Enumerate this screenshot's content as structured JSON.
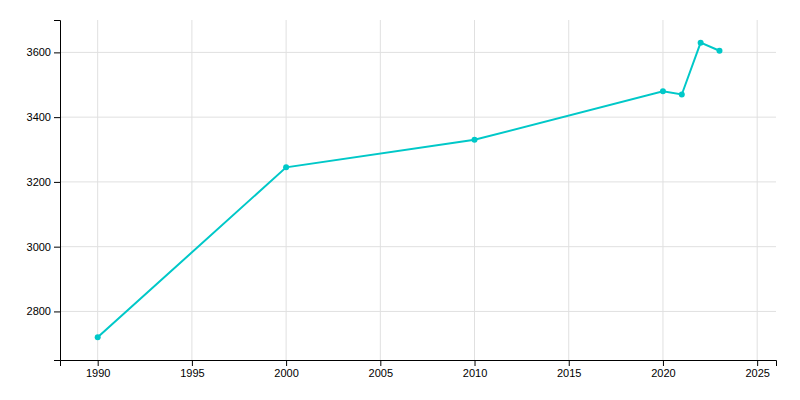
{
  "chart_data": {
    "type": "line",
    "x": [
      1990,
      2000,
      2010,
      2020,
      2021,
      2022,
      2023
    ],
    "values": [
      2720,
      3245,
      3330,
      3480,
      3470,
      3630,
      3605
    ],
    "color": "#00c8c8",
    "marker": "circle",
    "xlim": [
      1988,
      2026
    ],
    "ylim": [
      2650,
      3700
    ],
    "xticks": [
      1990,
      1995,
      2000,
      2005,
      2010,
      2015,
      2020,
      2025
    ],
    "yticks": [
      2800,
      3000,
      3200,
      3400,
      3600
    ],
    "grid": true
  }
}
